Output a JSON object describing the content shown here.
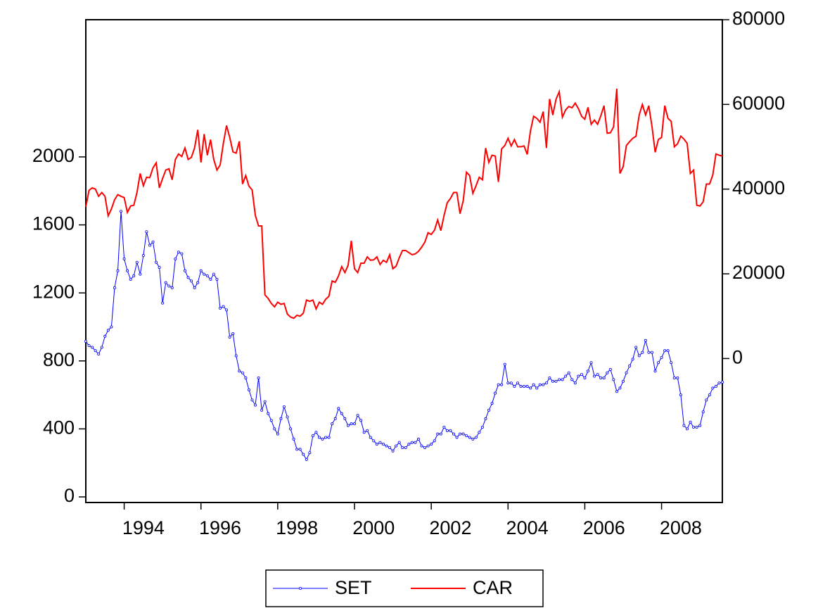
{
  "chart_data": {
    "type": "line",
    "categories": [
      null,
      null,
      null,
      null,
      null,
      null,
      null,
      null,
      null,
      null,
      null,
      null,
      null,
      null,
      null,
      null,
      null,
      null,
      "1994",
      null,
      null,
      null,
      null,
      null,
      null,
      null,
      null,
      null,
      null,
      null,
      null,
      null,
      null,
      null,
      null,
      null,
      null,
      null,
      null,
      null,
      null,
      null,
      "1996",
      null,
      null,
      null,
      null,
      null,
      null,
      null,
      null,
      null,
      null,
      null,
      null,
      null,
      null,
      null,
      null,
      null,
      null,
      null,
      null,
      null,
      null,
      null,
      "1998",
      null,
      null,
      null,
      null,
      null,
      null,
      null,
      null,
      null,
      null,
      null,
      null,
      null,
      null,
      null,
      null,
      null,
      null,
      null,
      null,
      null,
      null,
      null,
      "2000",
      null,
      null,
      null,
      null,
      null,
      null,
      null,
      null,
      null,
      null,
      null,
      null,
      null,
      null,
      null,
      null,
      null,
      null,
      null,
      null,
      null,
      null,
      null,
      "2002",
      null,
      null,
      null,
      null,
      null,
      null,
      null,
      null,
      null,
      null,
      null,
      null,
      null,
      null,
      null,
      null,
      null,
      null,
      null,
      null,
      null,
      null,
      null,
      "2004",
      null,
      null,
      null,
      null,
      null,
      null,
      null,
      null,
      null,
      null,
      null,
      null,
      null,
      null,
      null,
      null,
      null,
      null,
      null,
      null,
      null,
      null,
      null,
      "2006",
      null,
      null,
      null,
      null,
      null,
      null,
      null,
      null,
      null,
      null,
      null,
      null,
      null,
      null,
      null,
      null,
      null,
      null,
      null,
      null,
      null,
      null,
      null,
      "2008",
      null,
      null,
      null,
      null,
      null,
      null,
      null,
      null,
      null,
      null,
      null,
      null,
      null
    ],
    "series": [
      {
        "name": "SET",
        "color": "#0000ff",
        "marker": true,
        "values": [
          915,
          890,
          880,
          860,
          840,
          880,
          945,
          980,
          1000,
          1230,
          1330,
          1680,
          1400,
          1330,
          1280,
          1300,
          1380,
          1310,
          1420,
          1560,
          1480,
          1500,
          1380,
          1350,
          1140,
          1260,
          1240,
          1230,
          1400,
          1440,
          1430,
          1330,
          1290,
          1270,
          1230,
          1260,
          1330,
          1310,
          1300,
          1280,
          1310,
          1280,
          1110,
          1120,
          1100,
          940,
          960,
          830,
          740,
          730,
          700,
          630,
          570,
          540,
          700,
          510,
          560,
          490,
          450,
          400,
          370,
          460,
          530,
          470,
          400,
          340,
          280,
          280,
          250,
          220,
          260,
          360,
          380,
          350,
          340,
          350,
          350,
          430,
          460,
          520,
          490,
          460,
          420,
          430,
          430,
          480,
          450,
          380,
          390,
          350,
          330,
          310,
          320,
          310,
          300,
          290,
          270,
          300,
          320,
          290,
          290,
          310,
          320,
          320,
          340,
          300,
          290,
          300,
          310,
          330,
          370,
          370,
          410,
          390,
          390,
          370,
          350,
          370,
          370,
          360,
          350,
          340,
          350,
          380,
          410,
          460,
          510,
          550,
          610,
          660,
          660,
          780,
          670,
          670,
          650,
          670,
          650,
          650,
          650,
          640,
          660,
          640,
          660,
          660,
          670,
          700,
          680,
          680,
          690,
          690,
          710,
          730,
          690,
          670,
          710,
          720,
          700,
          740,
          790,
          710,
          720,
          700,
          700,
          730,
          750,
          690,
          620,
          640,
          680,
          730,
          770,
          810,
          880,
          830,
          850,
          920,
          850,
          850,
          740,
          790,
          820,
          860,
          860,
          790,
          700,
          700,
          600,
          420,
          400,
          440,
          410,
          410,
          420,
          500,
          570,
          600,
          640,
          650,
          670,
          675
        ]
      },
      {
        "name": "CAR",
        "color": "#ff0000",
        "axis": "y2",
        "values": [
          35800,
          39700,
          40300,
          40000,
          38300,
          39200,
          38300,
          33700,
          35300,
          37500,
          38700,
          38300,
          38000,
          34500,
          36000,
          36200,
          39200,
          43700,
          40800,
          42800,
          42700,
          45000,
          46200,
          40300,
          42500,
          44500,
          44800,
          42200,
          47000,
          48300,
          47700,
          49700,
          47000,
          47500,
          49700,
          54000,
          46300,
          53000,
          48000,
          51700,
          47000,
          44500,
          45700,
          50800,
          55000,
          52200,
          48800,
          48500,
          51300,
          41200,
          43200,
          40700,
          39800,
          33800,
          31300,
          31300,
          15000,
          14200,
          13000,
          12200,
          13300,
          12800,
          13000,
          10500,
          9800,
          9500,
          10200,
          10000,
          10700,
          13800,
          13500,
          13800,
          11700,
          13300,
          12800,
          14000,
          14700,
          18300,
          18000,
          19500,
          21700,
          20300,
          22000,
          27800,
          21200,
          20300,
          22500,
          22500,
          24000,
          23200,
          23300,
          24000,
          22200,
          23200,
          22700,
          24500,
          21200,
          21800,
          23800,
          25500,
          25500,
          25000,
          24500,
          24700,
          25300,
          26300,
          27500,
          29700,
          29300,
          30300,
          32700,
          30200,
          33800,
          36800,
          37800,
          39200,
          39200,
          34200,
          37300,
          44000,
          43200,
          39000,
          40800,
          42800,
          42200,
          49700,
          46300,
          48000,
          47800,
          41700,
          49500,
          50300,
          52000,
          50200,
          51700,
          50000,
          50000,
          50200,
          48200,
          53700,
          57200,
          56700,
          55800,
          58300,
          49700,
          61300,
          57500,
          61200,
          63000,
          57000,
          58700,
          59500,
          59200,
          60300,
          59000,
          57200,
          56500,
          59300,
          55300,
          56300,
          55300,
          57300,
          59700,
          53200,
          53300,
          54700,
          63700,
          43700,
          45300,
          50300,
          51200,
          52000,
          52500,
          57500,
          60000,
          57500,
          59700,
          54800,
          48700,
          51700,
          52200,
          59700,
          56700,
          56000,
          50000,
          50700,
          52500,
          51800,
          50800,
          43700,
          44500,
          36200,
          36000,
          37000,
          41200,
          41200,
          43300,
          48300,
          48000,
          47800
        ]
      }
    ],
    "ylim": [
      -33,
      2807
    ],
    "yticks": [
      0,
      400,
      800,
      1200,
      1600,
      2000
    ],
    "y2lim": [
      -34000,
      80000
    ],
    "y2ticks": [
      0,
      20000,
      40000,
      60000,
      80000
    ],
    "legend": "bottom"
  }
}
